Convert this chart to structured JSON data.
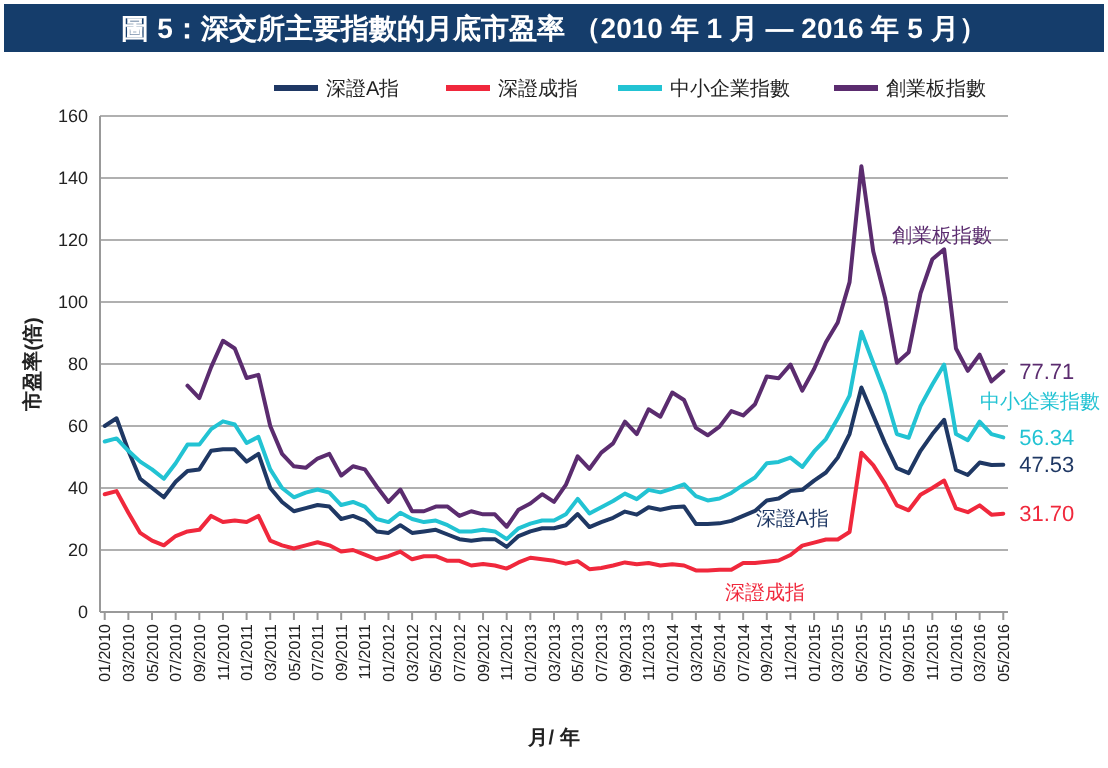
{
  "chart_data": {
    "type": "line",
    "title": "圖 5：深交所主要指數的月底市盈率 （2010 年 1 月 — 2016 年 5 月）",
    "xlabel": "月/ 年",
    "ylabel": "市盈率(倍)",
    "categories": [
      "01/2010",
      null,
      "03/2010",
      null,
      "05/2010",
      null,
      "07/2010",
      null,
      "09/2010",
      null,
      "11/2010",
      null,
      "01/2011",
      null,
      "03/2011",
      null,
      "05/2011",
      null,
      "07/2011",
      null,
      "09/2011",
      null,
      "11/2011",
      null,
      "01/2012",
      null,
      "03/2012",
      null,
      "05/2012",
      null,
      "07/2012",
      null,
      "09/2012",
      null,
      "11/2012",
      null,
      "01/2013",
      null,
      "03/2013",
      null,
      "05/2013",
      null,
      "07/2013",
      null,
      "09/2013",
      null,
      "11/2013",
      null,
      "01/2014",
      null,
      "03/2014",
      null,
      "05/2014",
      null,
      "07/2014",
      null,
      "09/2014",
      null,
      "11/2014",
      null,
      "01/2015",
      null,
      "03/2015",
      null,
      "05/2015",
      null,
      "07/2015",
      null,
      "09/2015",
      null,
      "11/2015",
      null,
      "01/2016",
      null,
      "03/2016",
      null,
      "05/2016"
    ],
    "series": [
      {
        "name": "深證A指",
        "color": "#1f3864",
        "values": [
          60,
          62.5,
          52,
          43,
          40,
          37,
          42,
          45.5,
          46,
          52,
          52.5,
          52.5,
          48.5,
          51,
          40,
          35.5,
          32.5,
          33.5,
          34.5,
          34,
          30,
          31,
          29.5,
          26,
          25.5,
          28,
          25.5,
          26,
          26.5,
          25,
          23.5,
          23,
          23.5,
          23.5,
          21,
          24.5,
          26,
          27,
          27,
          28,
          31.6,
          27.4,
          29,
          30.4,
          32.4,
          31.4,
          33.8,
          33,
          33.8,
          34,
          28.4,
          28.4,
          28.6,
          29.4,
          31,
          32.6,
          36,
          36.6,
          39,
          39.4,
          42.4,
          45,
          49.8,
          57.4,
          72.4,
          63.4,
          54.4,
          46.4,
          44.8,
          52,
          57.4,
          62,
          45.8,
          44.2,
          48.2,
          47.4,
          47.53
        ],
        "value_labels": [
          null,
          null,
          null,
          null,
          null,
          null,
          null,
          null,
          null,
          null,
          null,
          null,
          null,
          null,
          null,
          null,
          null,
          null,
          null,
          null,
          null,
          null,
          null,
          null,
          null,
          null,
          null,
          null,
          null,
          null,
          null,
          null,
          null,
          null,
          null,
          null,
          null,
          null,
          null,
          null,
          null,
          null,
          null,
          null,
          null,
          null,
          null,
          null,
          null,
          null,
          null,
          null,
          null,
          null,
          null,
          null,
          null,
          null,
          null,
          null,
          null,
          null,
          null,
          null,
          null,
          null,
          null,
          null,
          null,
          null,
          null,
          null,
          null,
          null,
          null,
          null,
          "47.53"
        ]
      },
      {
        "name": "深證成指",
        "color": "#f0283c",
        "values": [
          38,
          39,
          32,
          25.5,
          23,
          21.5,
          24.5,
          26,
          26.5,
          31,
          29,
          29.5,
          29,
          31,
          23,
          21.5,
          20.5,
          21.5,
          22.5,
          21.5,
          19.5,
          20,
          18.5,
          17,
          18,
          19.5,
          17,
          18,
          18,
          16.5,
          16.5,
          15,
          15.5,
          15,
          14,
          16,
          17.5,
          17,
          16.5,
          15.6,
          16.4,
          13.8,
          14.2,
          15,
          16,
          15.4,
          15.8,
          15,
          15.4,
          15,
          13.4,
          13.4,
          13.6,
          13.6,
          15.8,
          15.8,
          16.2,
          16.6,
          18.4,
          21.4,
          22.4,
          23.4,
          23.4,
          25.8,
          51.4,
          47.4,
          41.4,
          34.4,
          32.8,
          37.8,
          40,
          42.4,
          33.4,
          32.2,
          34.4,
          31.4,
          31.7
        ],
        "value_labels": [
          null,
          null,
          null,
          null,
          null,
          null,
          null,
          null,
          null,
          null,
          null,
          null,
          null,
          null,
          null,
          null,
          null,
          null,
          null,
          null,
          null,
          null,
          null,
          null,
          null,
          null,
          null,
          null,
          null,
          null,
          null,
          null,
          null,
          null,
          null,
          null,
          null,
          null,
          null,
          null,
          null,
          null,
          null,
          null,
          null,
          null,
          null,
          null,
          null,
          null,
          null,
          null,
          null,
          null,
          null,
          null,
          null,
          null,
          null,
          null,
          null,
          null,
          null,
          null,
          null,
          null,
          null,
          null,
          null,
          null,
          null,
          null,
          null,
          null,
          null,
          null,
          "31.70"
        ]
      },
      {
        "name": "中小企業指數",
        "color": "#22c3d3",
        "values": [
          55,
          56,
          52,
          48.5,
          46,
          43,
          48,
          54,
          54,
          59,
          61.5,
          60.5,
          54.5,
          56.5,
          46,
          40,
          37,
          38.5,
          39.5,
          38.5,
          34.5,
          35.5,
          34,
          30,
          29,
          32,
          30,
          29,
          29.5,
          28,
          26,
          26,
          26.5,
          26,
          23.5,
          27,
          28.5,
          29.5,
          29.5,
          31.5,
          36.5,
          31.8,
          33.8,
          35.8,
          38.2,
          36.4,
          39.4,
          38.6,
          39.8,
          41.2,
          37.4,
          36,
          36.6,
          38.4,
          41,
          43.4,
          48,
          48.4,
          49.8,
          46.8,
          51.8,
          55.8,
          62.4,
          69.8,
          90.4,
          80.4,
          70.4,
          57.4,
          56.2,
          66.4,
          73.4,
          79.8,
          57.4,
          55.4,
          61.4,
          57.4,
          56.34
        ],
        "value_labels": [
          null,
          null,
          null,
          null,
          null,
          null,
          null,
          null,
          null,
          null,
          null,
          null,
          null,
          null,
          null,
          null,
          null,
          null,
          null,
          null,
          null,
          null,
          null,
          null,
          null,
          null,
          null,
          null,
          null,
          null,
          null,
          null,
          null,
          null,
          null,
          null,
          null,
          null,
          null,
          null,
          null,
          null,
          null,
          null,
          null,
          null,
          null,
          null,
          null,
          null,
          null,
          null,
          null,
          null,
          null,
          null,
          null,
          null,
          null,
          null,
          null,
          null,
          null,
          null,
          null,
          null,
          null,
          null,
          null,
          null,
          null,
          null,
          null,
          null,
          null,
          null,
          "56.34"
        ]
      },
      {
        "name": "創業板指數",
        "color": "#5b2c6f",
        "values": [
          null,
          null,
          null,
          null,
          null,
          null,
          null,
          73,
          69,
          79,
          87.5,
          85,
          75.5,
          76.5,
          60,
          51,
          47,
          46.5,
          49.5,
          51,
          44,
          47,
          46,
          40.5,
          35.5,
          39.5,
          32.5,
          32.5,
          34,
          34,
          31,
          32.5,
          31.5,
          31.5,
          27.5,
          33,
          35,
          38,
          35.5,
          41,
          50.2,
          46.2,
          51.4,
          54.4,
          61.4,
          57.4,
          65.4,
          63,
          70.8,
          68.4,
          59.4,
          57,
          59.8,
          64.8,
          63.4,
          67,
          76,
          75.4,
          79.8,
          71.4,
          78.4,
          87,
          93.4,
          106.4,
          143.8,
          116.4,
          101.4,
          80.4,
          83.8,
          102.8,
          113.8,
          117,
          85,
          77.8,
          83,
          74.4,
          77.71
        ],
        "value_labels": [
          null,
          null,
          null,
          null,
          null,
          null,
          null,
          null,
          null,
          null,
          null,
          null,
          null,
          null,
          null,
          null,
          null,
          null,
          null,
          null,
          null,
          null,
          null,
          null,
          null,
          null,
          null,
          null,
          null,
          null,
          null,
          null,
          null,
          null,
          null,
          null,
          null,
          null,
          null,
          null,
          null,
          null,
          null,
          null,
          null,
          null,
          null,
          null,
          null,
          null,
          null,
          null,
          null,
          null,
          null,
          null,
          null,
          null,
          null,
          null,
          null,
          null,
          null,
          null,
          null,
          null,
          null,
          null,
          null,
          null,
          null,
          null,
          null,
          null,
          null,
          null,
          "77.71"
        ]
      }
    ],
    "ylim": [
      0,
      160
    ],
    "yticks": [
      0,
      20,
      40,
      60,
      80,
      100,
      120,
      140,
      160
    ],
    "grid": "y",
    "legend": "top right",
    "annotations": [
      "創業板指數",
      "中小企業指數",
      "深證A指",
      "深證成指"
    ]
  }
}
